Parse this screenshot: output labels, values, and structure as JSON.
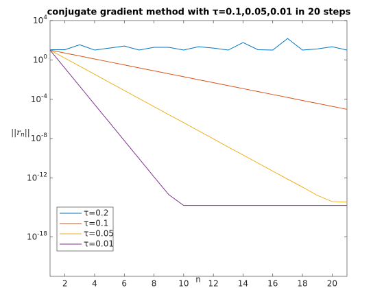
{
  "chart_data": {
    "type": "line",
    "title": "conjugate gradient method with τ=0.1,0.05,0.01 in 20 steps",
    "xlabel": "n",
    "ylabel": "||r_n||",
    "x": [
      1,
      2,
      3,
      4,
      5,
      6,
      7,
      8,
      9,
      10,
      11,
      12,
      13,
      14,
      15,
      16,
      17,
      18,
      19,
      20,
      21
    ],
    "series": [
      {
        "name": "τ=0.2",
        "color": "#0072bd",
        "values": [
          11,
          11,
          35,
          10,
          16,
          26,
          10,
          19,
          19,
          10,
          22,
          16,
          10,
          58,
          11,
          10,
          150,
          10,
          13,
          22,
          10
        ]
      },
      {
        "name": "τ=0.1",
        "color": "#d95319",
        "values": [
          10,
          5,
          2.5,
          1.25,
          0.625,
          0.3125,
          0.156,
          0.078,
          0.039,
          0.0195,
          0.00977,
          0.00488,
          0.00244,
          0.00122,
          0.00061,
          0.000305,
          0.000153,
          7.6e-05,
          3.8e-05,
          1.9e-05,
          9.5e-06
        ]
      },
      {
        "name": "τ=0.05",
        "color": "#edb120",
        "values": [
          10,
          1.5,
          0.23,
          0.035,
          0.0052,
          0.00079,
          0.00012,
          1.8e-05,
          2.7e-06,
          4.2e-07,
          6.3e-08,
          9.5e-09,
          1.4e-09,
          2.2e-10,
          3.3e-11,
          5e-12,
          7.6e-13,
          1.2e-13,
          1.7e-14,
          4e-15,
          3.5e-15
        ]
      },
      {
        "name": "τ=0.01",
        "color": "#7e2f8e",
        "values": [
          10,
          0.145,
          0.0021,
          3e-05,
          4.4e-07,
          6.3e-09,
          9.1e-11,
          1.3e-12,
          2e-14,
          1.6e-15,
          1.6e-15,
          1.6e-15,
          1.6e-15,
          1.6e-15,
          1.6e-15,
          1.6e-15,
          1.6e-15,
          1.6e-15,
          1.6e-15,
          1.6e-15,
          1.6e-15
        ]
      }
    ],
    "xlim": [
      1,
      21
    ],
    "xticks": [
      2,
      4,
      6,
      8,
      10,
      12,
      14,
      16,
      18,
      20
    ],
    "ylim": [
      1e-22,
      10000
    ],
    "log_y": true,
    "yticks": [
      {
        "value": 1e-18,
        "label": "10^-18"
      },
      {
        "value": 1e-12,
        "label": "10^-12"
      },
      {
        "value": 1e-08,
        "label": "10^-8"
      },
      {
        "value": 0.0001,
        "label": "10^-4"
      },
      {
        "value": 1,
        "label": "10^0"
      },
      {
        "value": 10000,
        "label": "10^4"
      }
    ],
    "legend": "lower left",
    "grid": false
  }
}
